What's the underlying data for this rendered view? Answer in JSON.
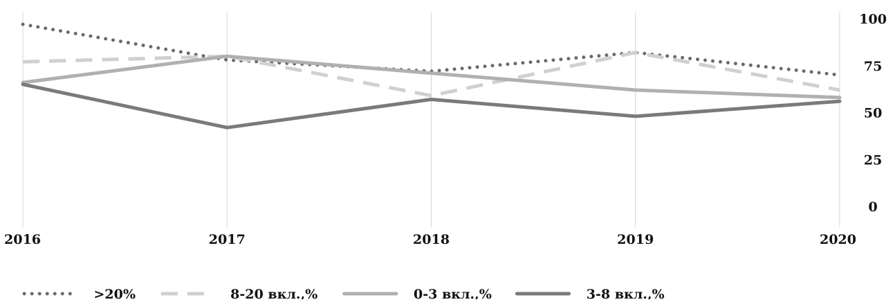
{
  "chart_data": {
    "type": "line",
    "title": "",
    "xlabel": "",
    "ylabel": "",
    "x": [
      "2016",
      "2017",
      "2018",
      "2019",
      "2020"
    ],
    "ylim": [
      0,
      100
    ],
    "yticks": [
      0,
      25,
      50,
      75,
      100
    ],
    "grid": "vertical",
    "y_axis_position": "right",
    "legend_position": "bottom",
    "series": [
      {
        "name": ">20%",
        "values": [
          97,
          78,
          72,
          82,
          70
        ],
        "color": "#6b6b6b",
        "style": "dotted"
      },
      {
        "name": "8-20 вкл.,%",
        "values": [
          77,
          80,
          59,
          82,
          62
        ],
        "color": "#d0d0d0",
        "style": "dashed"
      },
      {
        "name": "0-3 вкл.,%",
        "values": [
          66,
          80,
          71,
          62,
          58
        ],
        "color": "#b0b0b0",
        "style": "solid"
      },
      {
        "name": "3-8 вкл.,%",
        "values": [
          65,
          42,
          57,
          48,
          56
        ],
        "color": "#7a7a7a",
        "style": "solid"
      }
    ]
  }
}
